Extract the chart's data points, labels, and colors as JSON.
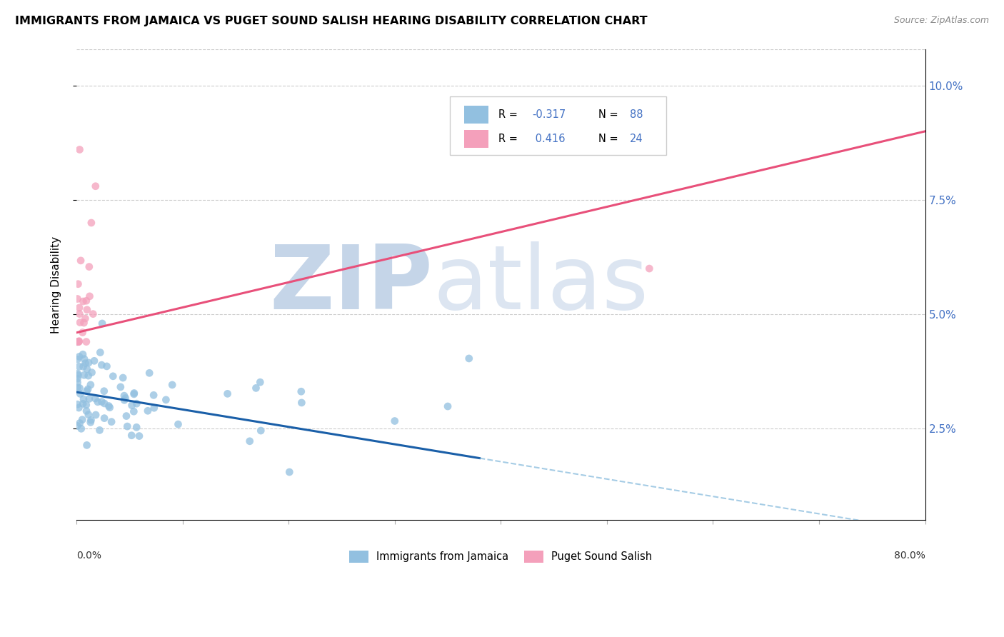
{
  "title": "IMMIGRANTS FROM JAMAICA VS PUGET SOUND SALISH HEARING DISABILITY CORRELATION CHART",
  "source": "Source: ZipAtlas.com",
  "ylabel": "Hearing Disability",
  "y_ticks": [
    0.025,
    0.05,
    0.075,
    0.1
  ],
  "y_tick_labels": [
    "2.5%",
    "5.0%",
    "7.5%",
    "10.0%"
  ],
  "xlim": [
    0.0,
    0.8
  ],
  "ylim": [
    0.005,
    0.108
  ],
  "blue_color": "#92c0e0",
  "pink_color": "#f4a0bb",
  "trend_blue_solid_color": "#1a5fa8",
  "trend_blue_dash_color": "#6aaad4",
  "trend_pink_color": "#e8507a",
  "watermark_zip": "#c5d5e8",
  "watermark_atlas": "#c5d5e8",
  "title_fontsize": 11.5,
  "source_fontsize": 9,
  "legend_r1": "R = ",
  "legend_v1": "-0.317",
  "legend_n1_label": "N = ",
  "legend_n1_val": "88",
  "legend_r2": "R =  ",
  "legend_v2": "0.416",
  "legend_n2_label": "N = ",
  "legend_n2_val": "24",
  "legend_color_blue": "#92c0e0",
  "legend_color_pink": "#f4a0bb",
  "legend_text_color": "#4472c4",
  "bottom_label_blue": "Immigrants from Jamaica",
  "bottom_label_pink": "Puget Sound Salish"
}
